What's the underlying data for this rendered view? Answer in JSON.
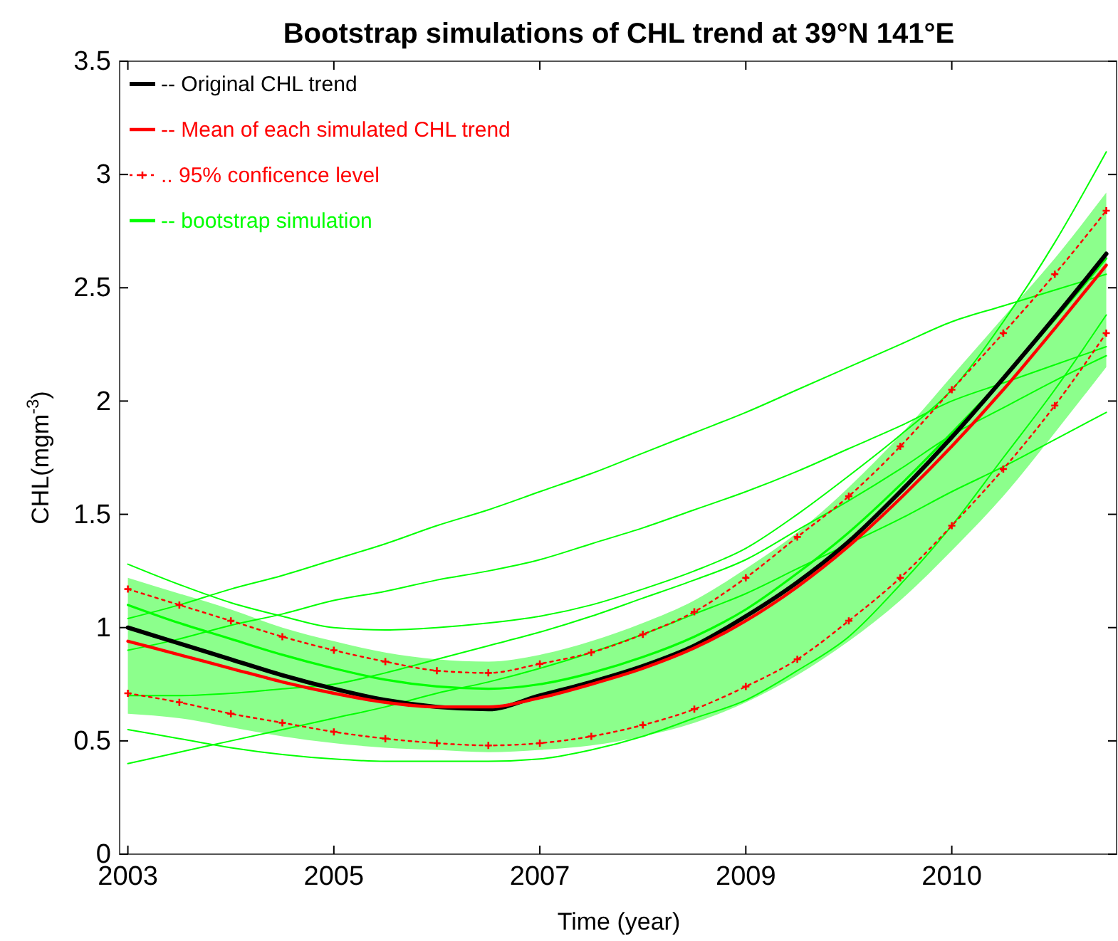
{
  "chart_data": {
    "type": "line",
    "title": "Bootstrap simulations of CHL trend at 39°N 141°E",
    "xlabel": "Time (year)",
    "ylabel": "CHL(mgm$^{-3}$)",
    "categories": [
      "2003",
      null,
      null,
      null,
      "2005",
      null,
      null,
      null,
      "2007",
      null,
      null,
      null,
      "2009",
      null,
      null,
      null,
      "2010",
      null,
      null,
      null
    ],
    "ylim": [
      0,
      3.5
    ],
    "yticks": [
      0,
      0.5,
      1,
      1.5,
      2,
      2.5,
      3,
      3.5
    ],
    "grid": false,
    "legend": "top left",
    "series": [
      {
        "name": "-- bootstrap simulation",
        "color": "#00ff00",
        "values": [
          1.1,
          1.02,
          0.95,
          0.88,
          0.82,
          0.77,
          0.74,
          0.73,
          0.75,
          0.8,
          0.87,
          0.96,
          1.08,
          1.24,
          1.42,
          1.63,
          1.86,
          2.1,
          2.36,
          2.63
        ],
        "lower": [
          0.62,
          0.6,
          0.56,
          0.52,
          0.49,
          0.47,
          0.46,
          0.45,
          0.46,
          0.48,
          0.52,
          0.58,
          0.67,
          0.79,
          0.94,
          1.12,
          1.34,
          1.58,
          1.86,
          2.15
        ],
        "upper": [
          1.22,
          1.15,
          1.08,
          1.0,
          0.94,
          0.89,
          0.86,
          0.85,
          0.88,
          0.94,
          1.02,
          1.12,
          1.26,
          1.42,
          1.62,
          1.85,
          2.11,
          2.37,
          2.63,
          2.92
        ]
      },
      {
        "color": "#00ff00",
        "values": [
          1.04,
          1.1,
          1.17,
          1.23,
          1.3,
          1.37,
          1.45,
          1.52,
          1.6,
          1.68,
          1.77,
          1.86,
          1.95,
          2.05,
          2.15,
          2.25,
          2.35,
          2.42,
          2.49,
          2.56
        ]
      },
      {
        "color": "#00ff00",
        "values": [
          0.9,
          0.95,
          1.01,
          1.06,
          1.12,
          1.16,
          1.21,
          1.25,
          1.3,
          1.37,
          1.44,
          1.52,
          1.6,
          1.69,
          1.79,
          1.89,
          2.0,
          2.08,
          2.16,
          2.24
        ]
      },
      {
        "color": "#00ff00",
        "values": [
          0.4,
          0.45,
          0.5,
          0.55,
          0.6,
          0.65,
          0.71,
          0.76,
          0.82,
          0.89,
          0.97,
          1.06,
          1.15,
          1.26,
          1.37,
          1.48,
          1.6,
          1.71,
          1.83,
          1.95
        ]
      },
      {
        "color": "#00ff00",
        "values": [
          1.28,
          1.19,
          1.11,
          1.05,
          1.0,
          0.99,
          1.0,
          1.02,
          1.05,
          1.1,
          1.17,
          1.25,
          1.35,
          1.5,
          1.67,
          1.85,
          2.05,
          2.35,
          2.7,
          3.1
        ]
      },
      {
        "color": "#00ff00",
        "values": [
          0.55,
          0.51,
          0.47,
          0.44,
          0.42,
          0.41,
          0.41,
          0.41,
          0.42,
          0.46,
          0.52,
          0.6,
          0.68,
          0.81,
          0.96,
          1.19,
          1.45,
          1.75,
          2.05,
          2.38
        ]
      },
      {
        "color": "#00ff00",
        "values": [
          0.7,
          0.7,
          0.71,
          0.73,
          0.75,
          0.8,
          0.86,
          0.92,
          0.98,
          1.05,
          1.13,
          1.21,
          1.3,
          1.43,
          1.56,
          1.7,
          1.85,
          1.97,
          2.09,
          2.2
        ]
      },
      {
        "name": "-- Original CHL trend",
        "color": "#000000",
        "values": [
          1.0,
          0.93,
          0.86,
          0.79,
          0.73,
          0.68,
          0.65,
          0.64,
          0.7,
          0.76,
          0.83,
          0.92,
          1.05,
          1.2,
          1.38,
          1.6,
          1.84,
          2.1,
          2.37,
          2.65
        ]
      },
      {
        "name": "-- Mean of each simulated CHL trend",
        "color": "#ff0000",
        "values": [
          0.94,
          0.88,
          0.82,
          0.76,
          0.71,
          0.67,
          0.65,
          0.65,
          0.69,
          0.75,
          0.82,
          0.91,
          1.03,
          1.18,
          1.36,
          1.57,
          1.8,
          2.05,
          2.32,
          2.6
        ]
      },
      {
        "name": ".. 95% conficence level",
        "color": "#ff0000",
        "marker": "cross",
        "line_style": "dotted",
        "values": [
          1.17,
          1.1,
          1.03,
          0.96,
          0.9,
          0.85,
          0.81,
          0.8,
          0.84,
          0.89,
          0.97,
          1.07,
          1.22,
          1.4,
          1.58,
          1.8,
          2.05,
          2.3,
          2.56,
          2.84
        ]
      },
      {
        "color": "#ff0000",
        "marker": "cross",
        "line_style": "dotted",
        "values": [
          0.71,
          0.67,
          0.62,
          0.58,
          0.54,
          0.51,
          0.49,
          0.48,
          0.49,
          0.52,
          0.57,
          0.64,
          0.74,
          0.86,
          1.03,
          1.22,
          1.45,
          1.7,
          1.98,
          2.3
        ]
      }
    ]
  }
}
